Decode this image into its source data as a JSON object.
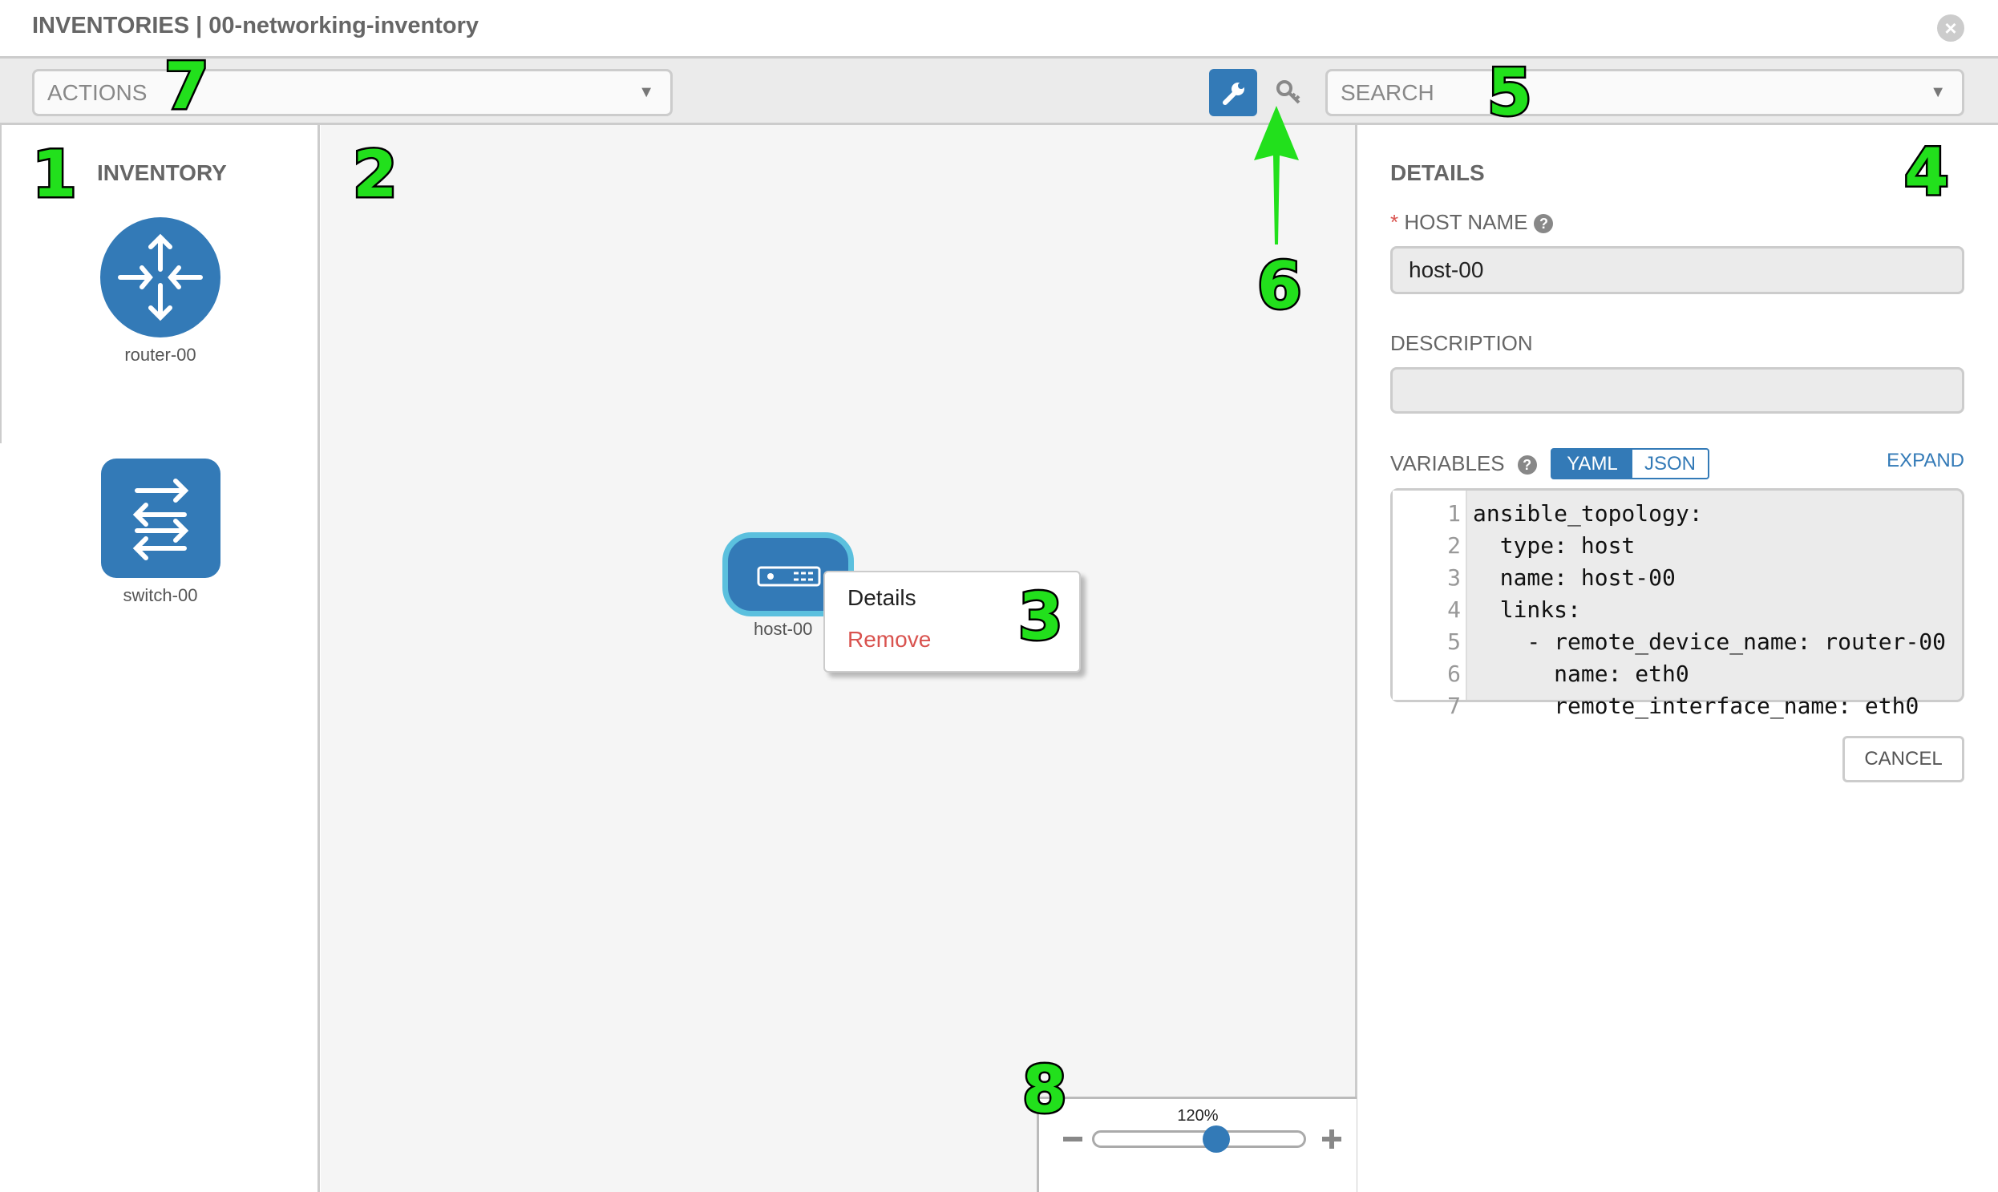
{
  "header": {
    "title": "INVENTORIES | 00-networking-inventory",
    "close_icon": "close-circle-icon"
  },
  "toolbar": {
    "actions_placeholder": "ACTIONS",
    "search_placeholder": "SEARCH",
    "wrench_icon": "wrench-icon",
    "key_icon": "key-icon",
    "accent": "#337ab7"
  },
  "inventory": {
    "title": "INVENTORY",
    "items": [
      {
        "label": "router-00",
        "icon": "router-icon"
      },
      {
        "label": "switch-00",
        "icon": "switch-icon"
      }
    ]
  },
  "canvas": {
    "node": {
      "label": "host-00",
      "icon": "host-server-icon"
    },
    "context_menu": {
      "details": "Details",
      "remove": "Remove"
    }
  },
  "details": {
    "title": "DETAILS",
    "host_name_label": "HOST NAME",
    "required_mark": "*",
    "host_name_value": "host-00",
    "description_label": "DESCRIPTION",
    "description_value": "",
    "variables_label": "VARIABLES",
    "yaml": "YAML",
    "json": "JSON",
    "expand": "EXPAND",
    "cancel": "CANCEL",
    "code_lines": [
      {
        "n": "1",
        "t": "ansible_topology:"
      },
      {
        "n": "2",
        "t": "  type: host"
      },
      {
        "n": "3",
        "t": "  name: host-00"
      },
      {
        "n": "4",
        "t": "  links:"
      },
      {
        "n": "5",
        "t": "    - remote_device_name: router-00"
      },
      {
        "n": "6",
        "t": "      name: eth0"
      },
      {
        "n": "7",
        "t": "      remote_interface_name: eth0"
      }
    ]
  },
  "zoom": {
    "label": "120%",
    "value_percent": 120
  },
  "annotations": [
    "1",
    "2",
    "3",
    "4",
    "5",
    "6",
    "7",
    "8"
  ]
}
